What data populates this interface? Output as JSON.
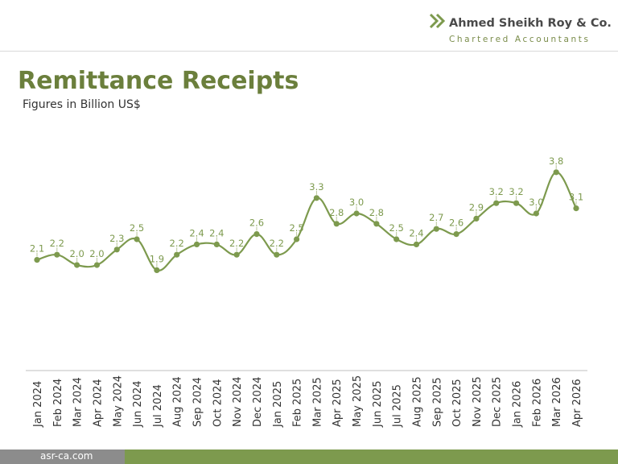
{
  "brand": {
    "name": "Ahmed Sheikh Roy & Co.",
    "tagline": "Chartered Accountants",
    "icon": "double-chevron-icon",
    "accent_color": "#7d9a4e"
  },
  "footer": {
    "website": "asr-ca.com"
  },
  "chart_data": {
    "type": "line",
    "title": "Remittance Receipts",
    "subtitle": "Figures in Billion US$",
    "xlabel": "",
    "ylabel": "",
    "ylim": [
      0,
      5
    ],
    "grid": false,
    "legend": "none",
    "color": "#7d9a4e",
    "categories": [
      "Jan 2024",
      "Feb 2024",
      "Mar 2024",
      "Apr 2024",
      "May 2024",
      "Jun 2024",
      "Jul 2024",
      "Aug 2024",
      "Sep 2024",
      "Oct 2024",
      "Nov 2024",
      "Dec 2024",
      "Jan 2025",
      "Feb 2025",
      "Mar 2025",
      "Apr 2025",
      "May 2025",
      "Jun 2025",
      "Jul 2025",
      "Aug 2025",
      "Sep 2025",
      "Oct 2025",
      "Nov 2025",
      "Dec 2025",
      "Jan 2026",
      "Feb 2026",
      "Mar 2026",
      "Apr 2026"
    ],
    "values": [
      2.1,
      2.2,
      2.0,
      2.0,
      2.3,
      2.5,
      1.9,
      2.2,
      2.4,
      2.4,
      2.2,
      2.6,
      2.2,
      2.5,
      3.3,
      2.8,
      3.0,
      2.8,
      2.5,
      2.4,
      2.7,
      2.6,
      2.9,
      3.2,
      3.2,
      3.0,
      3.8,
      3.1
    ],
    "data_labels": [
      "2.1",
      "2.2",
      "2.0",
      "2.0",
      "2.3",
      "2.5",
      "1.9",
      "2.2",
      "2.4",
      "2.4",
      "2.2",
      "2.6",
      "2.2",
      "2.5",
      "3.3",
      "2.8",
      "3.0",
      "2.8",
      "2.5",
      "2.4",
      "2.7",
      "2.6",
      "2.9",
      "3.2",
      "3.2",
      "3.0",
      "3.8",
      "3.1"
    ]
  }
}
